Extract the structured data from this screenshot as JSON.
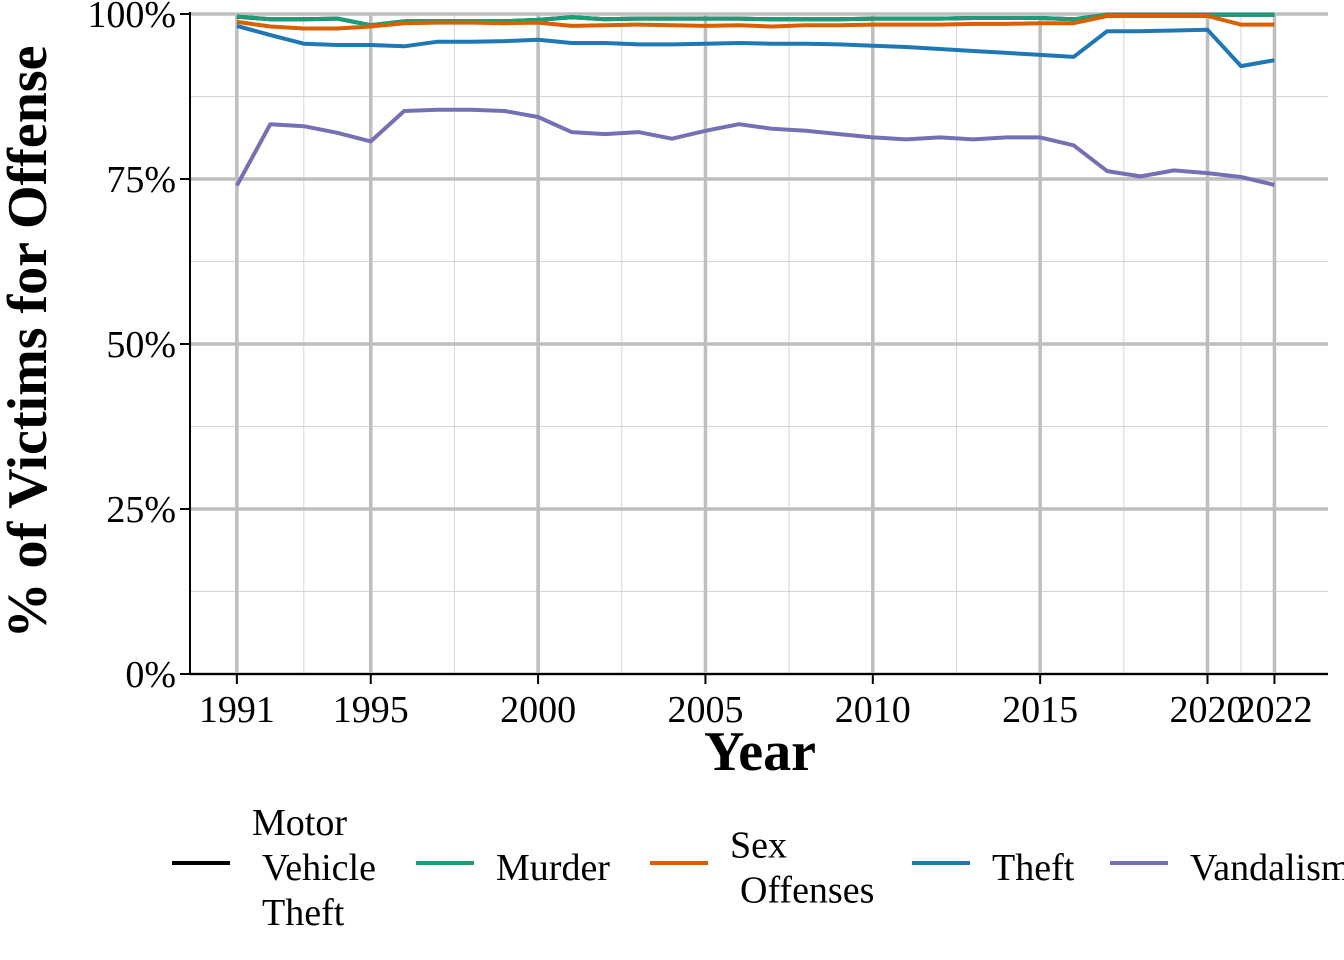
{
  "chart_data": {
    "type": "line",
    "xlabel": "Year",
    "ylabel": "% of Victims for Offense",
    "xlim": [
      1989.6,
      2023.6
    ],
    "ylim": [
      0,
      100
    ],
    "x_ticks": [
      1991,
      1995,
      2000,
      2005,
      2010,
      2015,
      2020,
      2022
    ],
    "x_tick_labels": [
      "1991",
      "1995",
      "2000",
      "2005",
      "2010",
      "2015",
      "2020",
      "2022"
    ],
    "y_ticks": [
      0,
      25,
      50,
      75,
      100
    ],
    "y_tick_labels": [
      "0%",
      "25%",
      "50%",
      "75%",
      "100%"
    ],
    "grid": true,
    "legend_position": "bottom",
    "x": [
      1991,
      1992,
      1993,
      1994,
      1995,
      1996,
      1997,
      1998,
      1999,
      2000,
      2001,
      2002,
      2003,
      2004,
      2005,
      2006,
      2007,
      2008,
      2009,
      2010,
      2011,
      2012,
      2013,
      2014,
      2015,
      2016,
      2017,
      2018,
      2019,
      2020,
      2021,
      2022
    ],
    "series": [
      {
        "name": "Motor Vehicle Theft",
        "legend_lines": [
          "Motor",
          "Vehicle",
          "Theft"
        ],
        "color": "#000000",
        "values": [
          99.6,
          99.2,
          99.2,
          99.3,
          98.3,
          98.9,
          98.9,
          98.9,
          98.9,
          99.1,
          99.5,
          99.2,
          99.3,
          99.3,
          99.3,
          99.3,
          99.2,
          99.2,
          99.2,
          99.3,
          99.3,
          99.3,
          99.4,
          99.4,
          99.4,
          99.2,
          99.9,
          99.9,
          99.9,
          99.9,
          99.9,
          99.9
        ]
      },
      {
        "name": "Murder",
        "legend_lines": [
          "Murder"
        ],
        "color": "#1b9e77",
        "values": [
          99.6,
          99.2,
          99.2,
          99.3,
          98.3,
          98.9,
          98.9,
          98.9,
          98.9,
          99.1,
          99.5,
          99.2,
          99.3,
          99.3,
          99.3,
          99.3,
          99.2,
          99.2,
          99.2,
          99.3,
          99.3,
          99.3,
          99.4,
          99.4,
          99.4,
          99.2,
          99.9,
          99.9,
          99.9,
          99.9,
          99.9,
          99.9
        ]
      },
      {
        "name": "Sex Offenses",
        "legend_lines": [
          "Sex",
          "Offenses"
        ],
        "color": "#d95f02",
        "values": [
          98.8,
          98.1,
          97.8,
          97.8,
          98.1,
          98.6,
          98.7,
          98.7,
          98.6,
          98.7,
          98.2,
          98.3,
          98.4,
          98.3,
          98.2,
          98.3,
          98.1,
          98.3,
          98.3,
          98.4,
          98.4,
          98.4,
          98.5,
          98.5,
          98.6,
          98.6,
          99.7,
          99.7,
          99.7,
          99.7,
          98.4,
          98.4
        ]
      },
      {
        "name": "Theft",
        "legend_lines": [
          "Theft"
        ],
        "color": "#1f78b4",
        "values": [
          98.2,
          96.8,
          95.5,
          95.3,
          95.3,
          95.1,
          95.8,
          95.8,
          95.9,
          96.1,
          95.6,
          95.6,
          95.4,
          95.4,
          95.5,
          95.6,
          95.5,
          95.5,
          95.4,
          95.2,
          95.0,
          94.7,
          94.4,
          94.1,
          93.8,
          93.5,
          97.4,
          97.4,
          97.5,
          97.6,
          92.1,
          93.0
        ]
      },
      {
        "name": "Vandalism",
        "legend_lines": [
          "Vandalism"
        ],
        "color": "#7570b3",
        "values": [
          74.0,
          83.3,
          83.0,
          82.0,
          80.7,
          85.3,
          85.5,
          85.5,
          85.3,
          84.4,
          82.1,
          81.8,
          82.1,
          81.1,
          82.3,
          83.3,
          82.6,
          82.3,
          81.8,
          81.3,
          81.0,
          81.3,
          81.0,
          81.3,
          81.3,
          80.1,
          76.2,
          75.4,
          76.3,
          75.9,
          75.3,
          74.1
        ]
      }
    ]
  }
}
